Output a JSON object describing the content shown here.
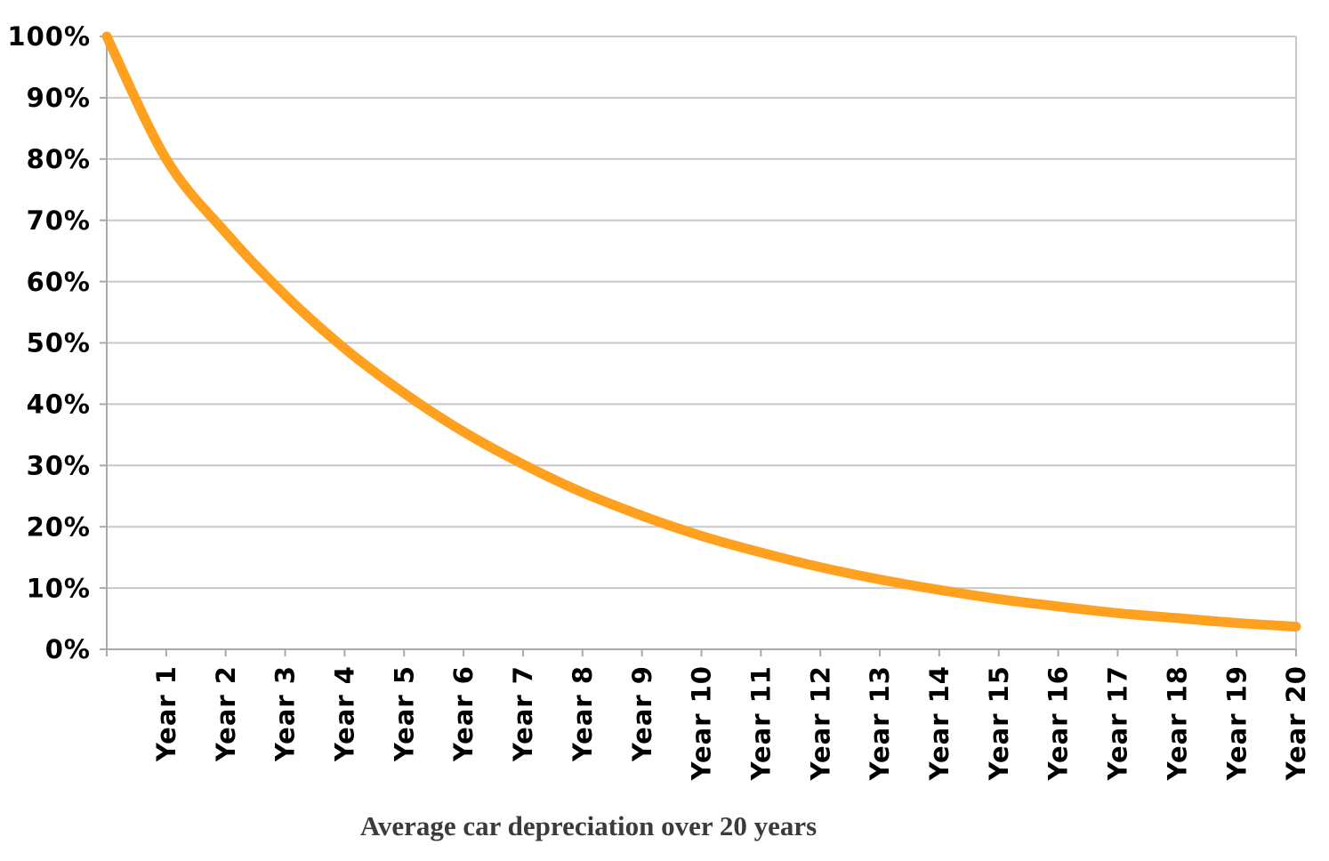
{
  "chart_data": {
    "type": "line",
    "title": "Average car depreciation over 20 years",
    "categories": [
      "Year 1",
      "Year 2",
      "Year 3",
      "Year 4",
      "Year 5",
      "Year 6",
      "Year 7",
      "Year 8",
      "Year 9",
      "Year 10",
      "Year 11",
      "Year 12",
      "Year 13",
      "Year 14",
      "Year 15",
      "Year 16",
      "Year 17",
      "Year 18",
      "Year 19",
      "Year 20"
    ],
    "initial_value_pct": 100,
    "values_pct": [
      80.0,
      68.0,
      57.8,
      49.1,
      41.8,
      35.5,
      30.2,
      25.6,
      21.8,
      18.5,
      15.8,
      13.4,
      11.4,
      9.7,
      8.2,
      7.0,
      5.9,
      5.1,
      4.3,
      3.7
    ],
    "first_point_on_axis": true,
    "xlabel": "",
    "ylabel": "",
    "ylim": [
      0,
      100
    ],
    "y_tick_step": 10,
    "y_tick_labels": [
      "0%",
      "10%",
      "20%",
      "30%",
      "40%",
      "50%",
      "60%",
      "70%",
      "80%",
      "90%",
      "100%"
    ],
    "grid": true,
    "legend": false,
    "smooth_line": true,
    "colors": {
      "line": "#FFA01E",
      "gridline": "#C8C8C8",
      "axis": "#A9A9A9",
      "tick_label": "#000000",
      "title": "#3B3B3B",
      "background": "#FFFFFF"
    }
  }
}
